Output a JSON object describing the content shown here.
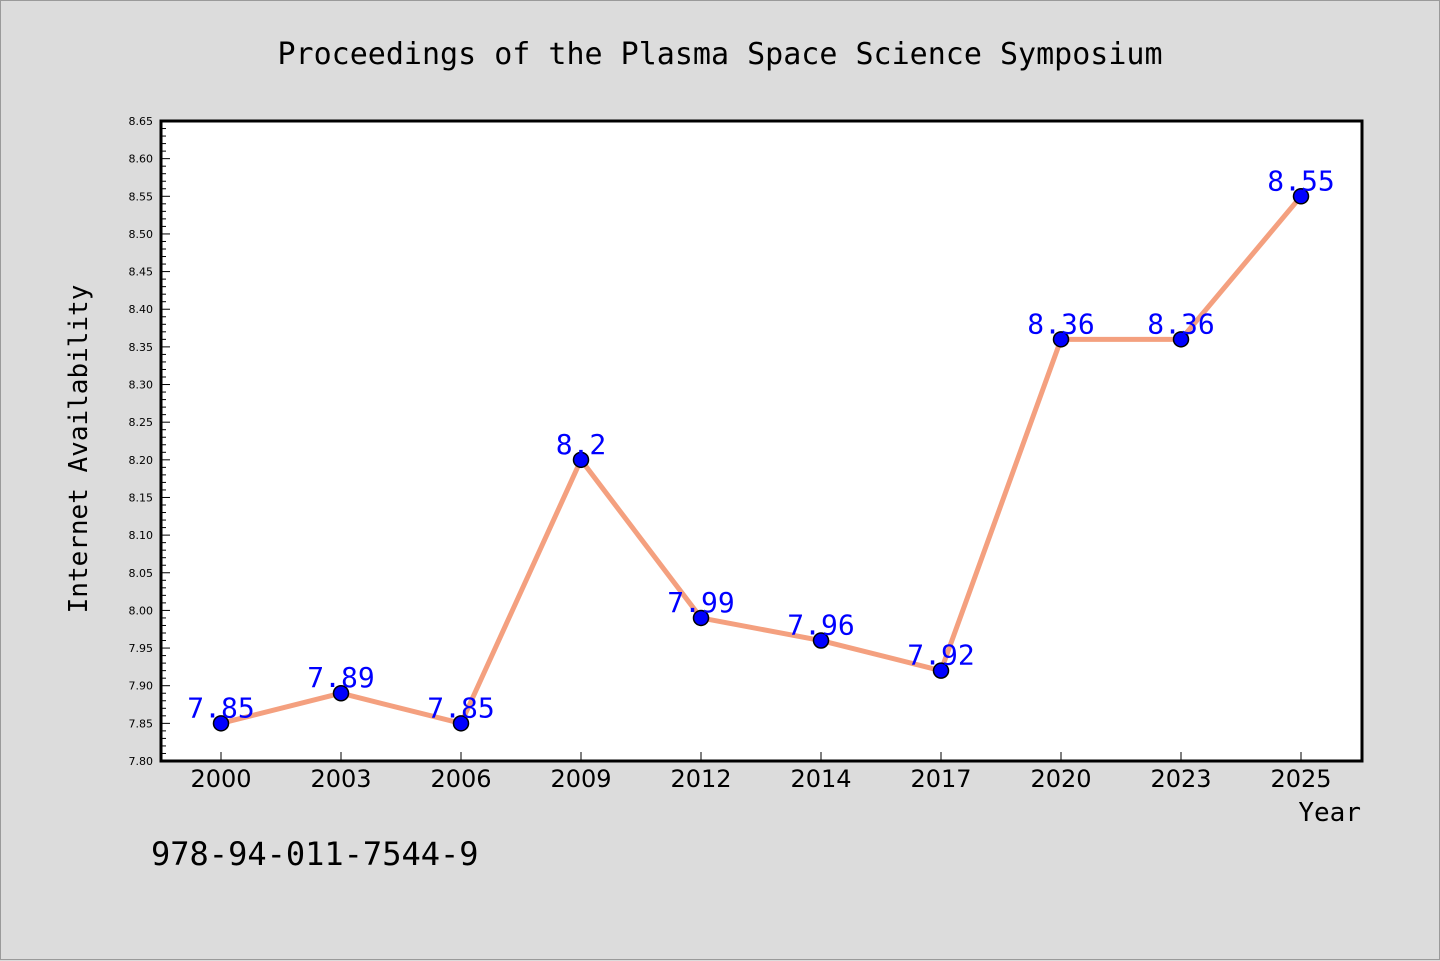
{
  "chart_data": {
    "type": "line",
    "title": "Proceedings of the Plasma Space Science Symposium",
    "xlabel": "Year",
    "ylabel": "Internet Availability",
    "categories": [
      "2000",
      "2003",
      "2006",
      "2009",
      "2012",
      "2014",
      "2017",
      "2020",
      "2023",
      "2025"
    ],
    "values": [
      7.85,
      7.89,
      7.85,
      8.2,
      7.99,
      7.96,
      7.92,
      8.36,
      8.36,
      8.55
    ],
    "data_labels": [
      "7.85",
      "7.89",
      "7.85",
      "8.2",
      "7.99",
      "7.96",
      "7.92",
      "8.36",
      "8.36",
      "8.55"
    ],
    "ylim": [
      7.8,
      8.65
    ],
    "yticks": [
      "7.80",
      "7.85",
      "7.90",
      "7.95",
      "8.00",
      "8.05",
      "8.10",
      "8.15",
      "8.20",
      "8.25",
      "8.30",
      "8.35",
      "8.40",
      "8.45",
      "8.50",
      "8.55",
      "8.60",
      "8.65"
    ],
    "grid": false,
    "colors": {
      "line": "#f4a07f",
      "marker": "#0000ff",
      "label": "#0000ff",
      "background": "#dcdcdc",
      "plot_background": "#ffffff"
    }
  },
  "footer": {
    "isbn": "978-94-011-7544-9"
  }
}
